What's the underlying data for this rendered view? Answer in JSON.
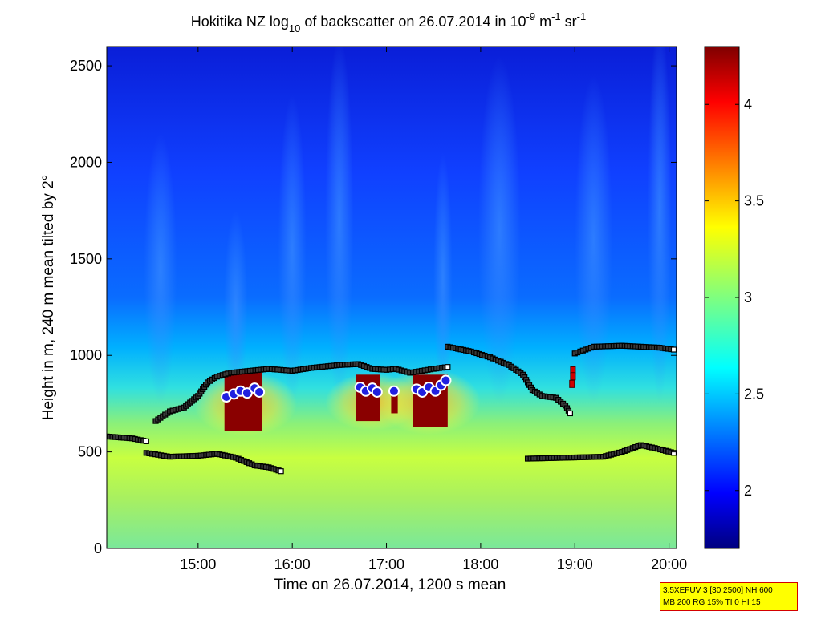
{
  "chart_data": {
    "type": "heatmap",
    "title": {
      "prefix": "Hokitika NZ log",
      "sub": "10",
      "middle": " of backscatter on 26.07.2014 in 10",
      "sup1": "-9",
      "unit1": " m",
      "sup2": "-1",
      "unit2": " sr",
      "sup3": "-1"
    },
    "xlabel": "Time on 26.07.2014, 1200 s mean",
    "ylabel": "Height in m, 240 m mean tilted by 2°",
    "xlim": [
      14.03,
      20.08
    ],
    "ylim": [
      0,
      2600
    ],
    "x_ticks": [
      15,
      16,
      17,
      18,
      19,
      20
    ],
    "x_tick_labels": [
      "15:00",
      "16:00",
      "17:00",
      "18:00",
      "19:00",
      "20:00"
    ],
    "y_ticks": [
      0,
      500,
      1000,
      1500,
      2000,
      2500
    ],
    "y_tick_labels": [
      "0",
      "500",
      "1000",
      "1500",
      "2000",
      "2500"
    ],
    "colorbar": {
      "range": [
        1.7,
        4.3
      ],
      "ticks": [
        2,
        2.5,
        3,
        3.5,
        4
      ],
      "tick_labels": [
        "2",
        "2.5",
        "3",
        "3.5",
        "4"
      ],
      "colormap": "jet"
    },
    "upper_layer_top": [
      [
        14.55,
        660
      ],
      [
        14.7,
        710
      ],
      [
        14.85,
        730
      ],
      [
        15.0,
        790
      ],
      [
        15.1,
        860
      ],
      [
        15.2,
        890
      ],
      [
        15.35,
        910
      ],
      [
        15.55,
        920
      ],
      [
        15.75,
        930
      ],
      [
        16.0,
        920
      ],
      [
        16.2,
        935
      ],
      [
        16.5,
        950
      ],
      [
        16.7,
        955
      ],
      [
        16.85,
        930
      ],
      [
        17.0,
        925
      ],
      [
        17.1,
        930
      ],
      [
        17.25,
        910
      ],
      [
        17.5,
        930
      ],
      [
        17.65,
        940
      ]
    ],
    "upper_layer_top_2": [
      [
        17.65,
        1045
      ],
      [
        17.9,
        1020
      ],
      [
        18.1,
        990
      ],
      [
        18.3,
        950
      ],
      [
        18.45,
        900
      ],
      [
        18.55,
        820
      ],
      [
        18.65,
        790
      ],
      [
        18.8,
        780
      ],
      [
        18.9,
        740
      ],
      [
        18.95,
        700
      ]
    ],
    "upper_layer_top_3": [
      [
        19.0,
        1010
      ],
      [
        19.2,
        1045
      ],
      [
        19.5,
        1050
      ],
      [
        19.7,
        1045
      ],
      [
        19.9,
        1040
      ],
      [
        20.05,
        1030
      ]
    ],
    "upper_layer_top_3_breaks": [
      [
        18.98,
        920
      ],
      [
        18.98,
        890
      ],
      [
        18.97,
        850
      ]
    ],
    "lower_layer_a": [
      [
        14.03,
        580
      ],
      [
        14.3,
        570
      ],
      [
        14.45,
        555
      ]
    ],
    "lower_layer_b": [
      [
        14.45,
        495
      ],
      [
        14.7,
        475
      ],
      [
        15.0,
        480
      ],
      [
        15.2,
        490
      ],
      [
        15.4,
        470
      ],
      [
        15.6,
        430
      ],
      [
        15.75,
        420
      ],
      [
        15.88,
        400
      ]
    ],
    "lower_layer_c": [
      [
        18.5,
        465
      ],
      [
        18.9,
        470
      ],
      [
        19.3,
        475
      ],
      [
        19.5,
        500
      ],
      [
        19.7,
        535
      ],
      [
        19.85,
        520
      ],
      [
        20.05,
        495
      ]
    ],
    "cloud_blocks": [
      {
        "x0": 15.28,
        "x1": 15.68,
        "y0": 610,
        "y1": 920
      },
      {
        "x0": 16.68,
        "x1": 16.93,
        "y0": 660,
        "y1": 900
      },
      {
        "x0": 17.05,
        "x1": 17.12,
        "y0": 700,
        "y1": 820
      },
      {
        "x0": 17.28,
        "x1": 17.65,
        "y0": 630,
        "y1": 900
      }
    ],
    "cloud_base": [
      [
        15.3,
        785
      ],
      [
        15.38,
        800
      ],
      [
        15.45,
        815
      ],
      [
        15.52,
        805
      ],
      [
        15.6,
        830
      ],
      [
        15.65,
        810
      ],
      [
        16.72,
        835
      ],
      [
        16.78,
        815
      ],
      [
        16.85,
        830
      ],
      [
        16.9,
        810
      ],
      [
        17.08,
        815
      ],
      [
        17.32,
        825
      ],
      [
        17.38,
        810
      ],
      [
        17.45,
        835
      ],
      [
        17.52,
        815
      ],
      [
        17.58,
        845
      ],
      [
        17.63,
        870
      ]
    ]
  }
}
